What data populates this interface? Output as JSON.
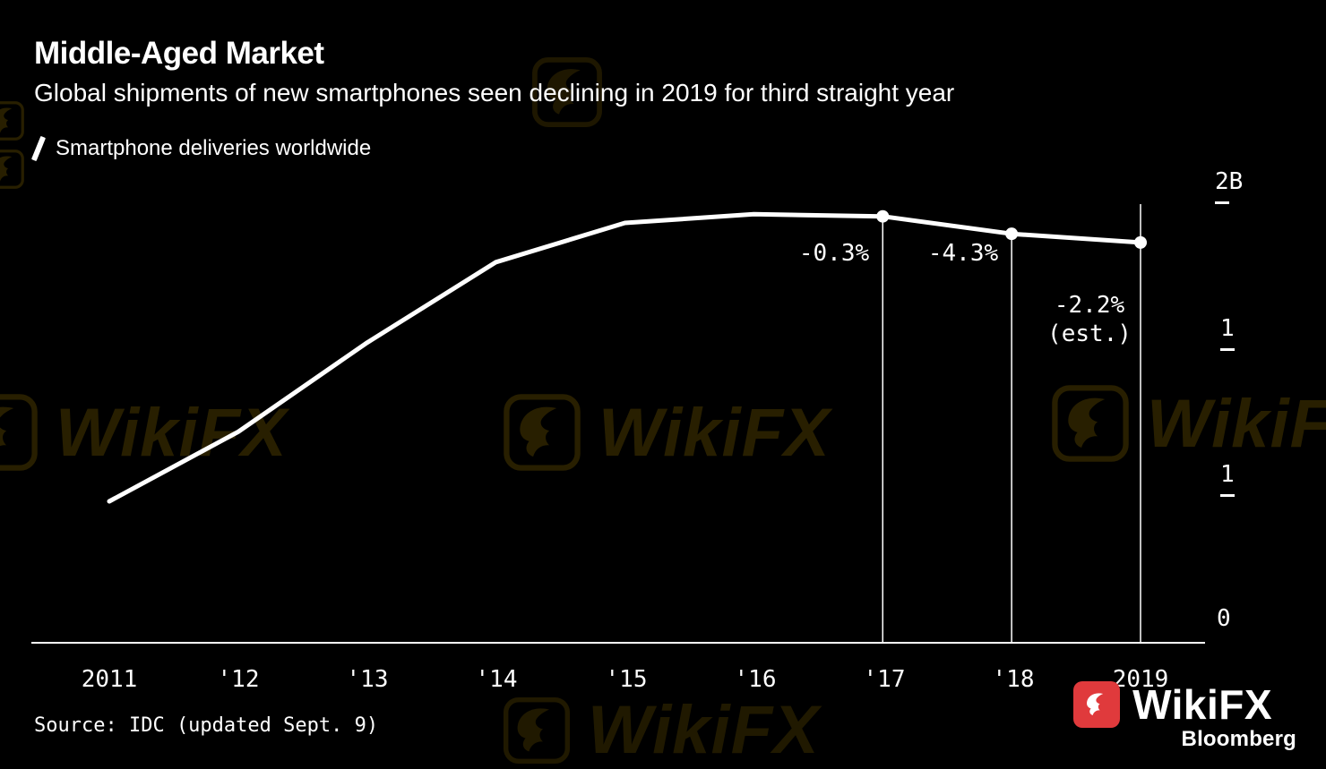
{
  "header": {
    "title": "Middle-Aged Market",
    "subtitle": "Global shipments of new smartphones seen declining in 2019 for third straight year"
  },
  "legend": {
    "label": "Smartphone deliveries worldwide"
  },
  "footer": {
    "source": "Source: IDC (updated Sept. 9)",
    "bloomberg": "Bloomberg"
  },
  "watermark": {
    "brand": "WikiFX"
  },
  "colors": {
    "background": "#000000",
    "text": "#ffffff",
    "line": "#ffffff",
    "watermark": "#6b5300",
    "logo_red": "#e03a3c"
  },
  "chart_data": {
    "type": "line",
    "title": "Middle-Aged Market",
    "subtitle": "Global shipments of new smartphones seen declining in 2019 for third straight year",
    "x_labels": [
      "2011",
      "'12",
      "'13",
      "'14",
      "'15",
      "'16",
      "'17",
      "'18",
      "2019"
    ],
    "series": [
      {
        "name": "Smartphone deliveries worldwide",
        "values_billions": [
          0.65,
          0.97,
          1.38,
          1.75,
          1.93,
          1.97,
          1.96,
          1.88,
          1.84
        ]
      }
    ],
    "unit": "billions of units",
    "ylim": [
      0,
      2
    ],
    "y_axis_labels": [
      "2B",
      "1",
      "1",
      "0"
    ],
    "marker_years": [
      "'17",
      "'18",
      "2019"
    ],
    "annotations": [
      {
        "text": "-0.3%",
        "attached_to": "'17"
      },
      {
        "text": "-4.3%",
        "attached_to": "'18"
      },
      {
        "text": "-2.2%",
        "attached_to": "2019"
      },
      {
        "text": "(est.)",
        "attached_to": "2019"
      }
    ],
    "legend_position": "top-left",
    "grid": false
  }
}
